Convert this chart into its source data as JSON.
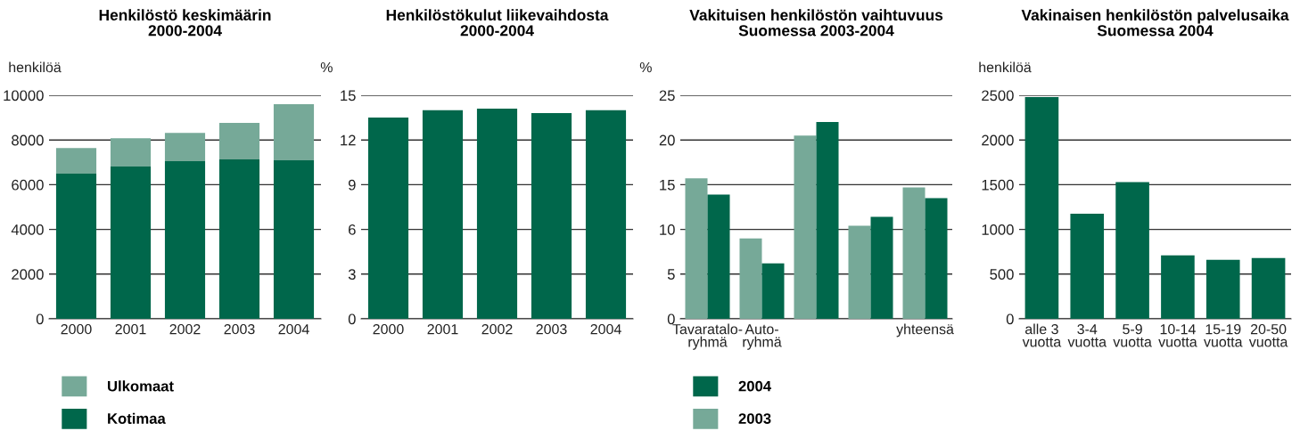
{
  "chart_data": [
    {
      "type": "bar",
      "title": "Henkilöstö keskimäärin\n2000-2004",
      "ylabel": "henkilöä",
      "categories": [
        "2000",
        "2001",
        "2002",
        "2003",
        "2004"
      ],
      "stacked": true,
      "series": [
        {
          "name": "Kotimaa",
          "color": "#00674b",
          "values": [
            6490,
            6810,
            7050,
            7130,
            7090
          ]
        },
        {
          "name": "Ulkomaat",
          "color": "#76a998",
          "values": [
            1150,
            1270,
            1270,
            1630,
            2510
          ]
        }
      ],
      "ylim": [
        0,
        10000
      ],
      "yticks": [
        0,
        2000,
        4000,
        6000,
        8000,
        10000
      ],
      "grid": "y",
      "legend": "bottom"
    },
    {
      "type": "bar",
      "title": "Henkilöstökulut liikevaihdosta\n2000-2004",
      "ylabel": "%",
      "categories": [
        "2000",
        "2001",
        "2002",
        "2003",
        "2004"
      ],
      "series": [
        {
          "color": "#00674b",
          "values": [
            13.5,
            14.0,
            14.1,
            13.8,
            14.0
          ]
        }
      ],
      "ylim": [
        0,
        15
      ],
      "yticks": [
        0,
        3,
        6,
        9,
        12,
        15
      ],
      "grid": "y"
    },
    {
      "type": "bar",
      "title": "Vakituisen henkilöstön vaihtuvuus\nSuomessa 2003-2004",
      "ylabel": "%",
      "categories": [
        "Tavaratalo-\nryhmä",
        "Auto-\nryhmä",
        null,
        null,
        "yhteensä"
      ],
      "series": [
        {
          "name": "2003",
          "color": "#76a998",
          "values": [
            15.7,
            9.0,
            20.5,
            10.4,
            14.7
          ]
        },
        {
          "name": "2004",
          "color": "#00674b",
          "values": [
            13.9,
            6.2,
            22.0,
            11.4,
            13.5
          ]
        }
      ],
      "ylim": [
        0,
        25
      ],
      "yticks": [
        0,
        5,
        10,
        15,
        20,
        25
      ],
      "grid": "y",
      "legend": "bottom"
    },
    {
      "type": "bar",
      "title": "Vakinaisen henkilöstön palvelusaika\nSuomessa 2004",
      "ylabel": "henkilöä",
      "categories": [
        "alle 3\nvuotta",
        "3-4\nvuotta",
        "5-9\nvuotta",
        "10-14\nvuotta",
        "15-19\nvuotta",
        "20-50\nvuotta"
      ],
      "series": [
        {
          "color": "#00674b",
          "values": [
            2480,
            1175,
            1530,
            710,
            660,
            680
          ]
        }
      ],
      "ylim": [
        0,
        2500
      ],
      "yticks": [
        0,
        500,
        1000,
        1500,
        2000,
        2500
      ],
      "grid": "y"
    }
  ]
}
